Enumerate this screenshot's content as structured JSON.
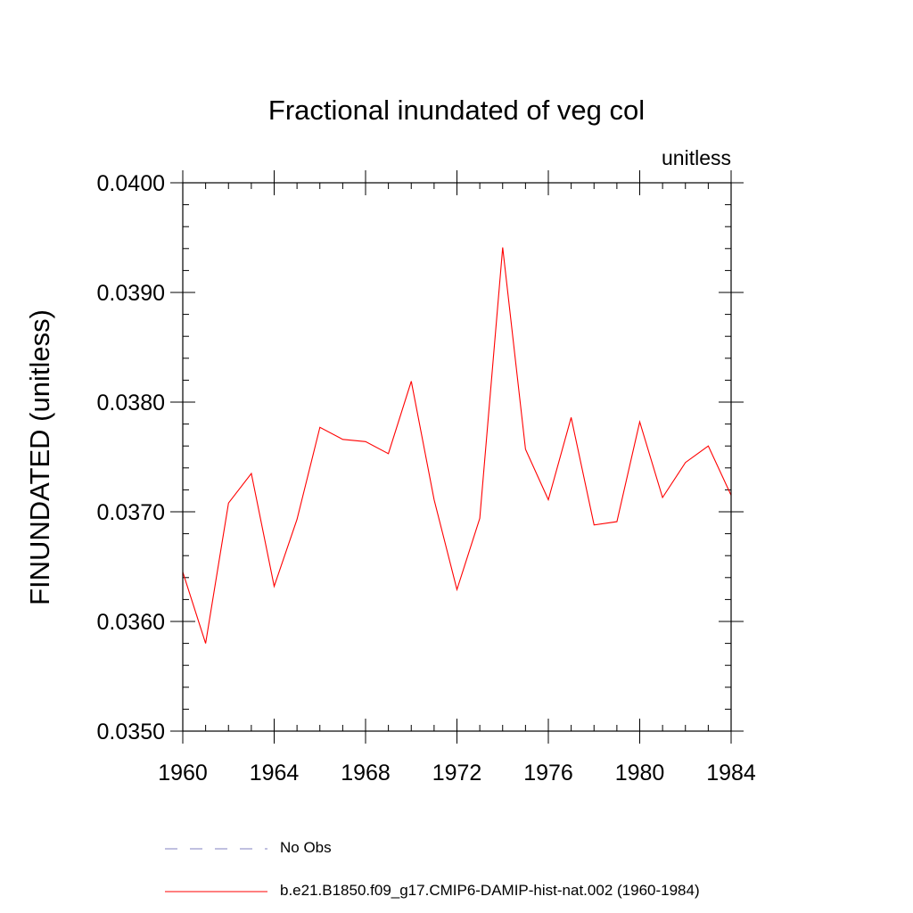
{
  "chart_data": {
    "type": "line",
    "title": "Fractional inundated of veg col",
    "units_label": "unitless",
    "ylabel": "FINUNDATED  (unitless)",
    "xlabel": "",
    "xlim": [
      1960,
      1984
    ],
    "ylim": [
      0.035,
      0.04
    ],
    "x_ticks": [
      1960,
      1964,
      1968,
      1972,
      1976,
      1980,
      1984
    ],
    "x_tick_labels": [
      "1960",
      "1964",
      "1968",
      "1972",
      "1976",
      "1980",
      "1984"
    ],
    "y_ticks": [
      0.035,
      0.036,
      0.037,
      0.038,
      0.039,
      0.04
    ],
    "y_tick_labels": [
      "0.0350",
      "0.0360",
      "0.0370",
      "0.0380",
      "0.0390",
      "0.0400"
    ],
    "grid": false,
    "legend_position": "bottom",
    "series": [
      {
        "name": "No Obs",
        "color": "#8080c0",
        "dash": "dashed",
        "x": [],
        "values": []
      },
      {
        "name": "b.e21.B1850.f09_g17.CMIP6-DAMIP-hist-nat.002 (1960-1984)",
        "color": "#ff0000",
        "dash": "solid",
        "x": [
          1960,
          1961,
          1962,
          1963,
          1964,
          1965,
          1966,
          1967,
          1968,
          1969,
          1970,
          1971,
          1972,
          1973,
          1974,
          1975,
          1976,
          1977,
          1978,
          1979,
          1980,
          1981,
          1982,
          1983,
          1984
        ],
        "values": [
          0.03645,
          0.0358,
          0.03708,
          0.03735,
          0.03632,
          0.03693,
          0.03777,
          0.03766,
          0.03764,
          0.03753,
          0.03819,
          0.03711,
          0.03629,
          0.03694,
          0.03941,
          0.03757,
          0.03711,
          0.03786,
          0.03688,
          0.03691,
          0.03782,
          0.03713,
          0.03745,
          0.0376,
          0.03715
        ]
      }
    ]
  }
}
